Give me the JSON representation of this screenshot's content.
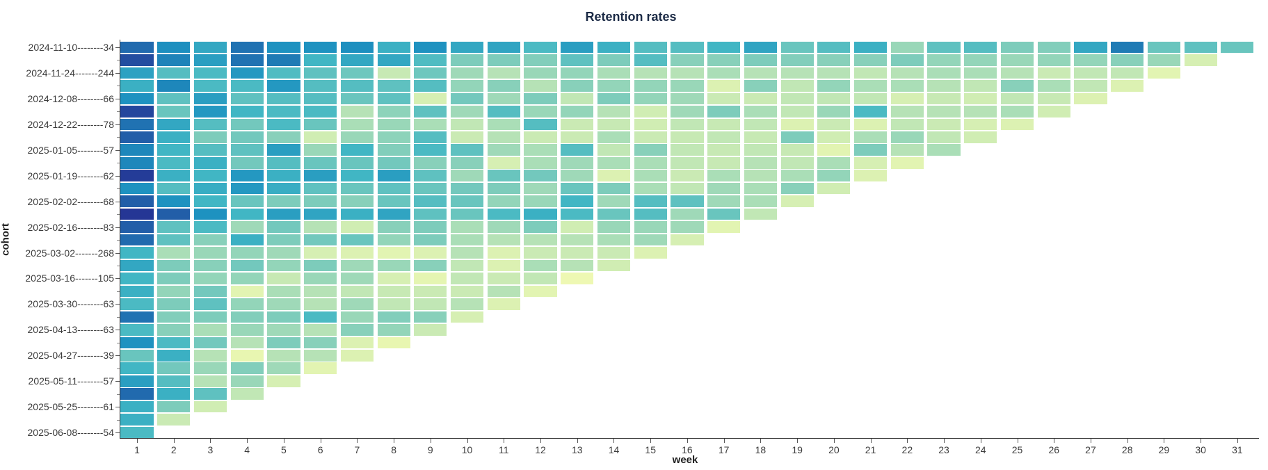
{
  "chart": {
    "title": "Retention rates",
    "x_axis": {
      "label": "week",
      "tick_labels": [
        "1",
        "2",
        "3",
        "4",
        "5",
        "6",
        "7",
        "8",
        "9",
        "10",
        "11",
        "12",
        "13",
        "14",
        "15",
        "16",
        "17",
        "18",
        "19",
        "20",
        "21",
        "22",
        "23",
        "24",
        "25",
        "26",
        "27",
        "28",
        "29",
        "30",
        "31"
      ]
    },
    "y_axis": {
      "label": "cohort",
      "tick_labels": [
        "2024-11-10--------34",
        "2024-11-24-------244",
        "2024-12-08--------66",
        "2024-12-22--------78",
        "2025-01-05--------57",
        "2025-01-19--------62",
        "2025-02-02--------68",
        "2025-02-16--------83",
        "2025-03-02-------268",
        "2025-03-16-------105",
        "2025-03-30--------63",
        "2025-04-13--------63",
        "2025-04-27--------39",
        "2025-05-11--------57",
        "2025-05-25--------61",
        "2025-06-08--------54"
      ]
    },
    "colors": {
      "background": "#ffffff",
      "title_color": "#1b2a45",
      "tick_text_color": "#3b3b3b",
      "colormap_name": "YlGnBu",
      "colormap_stops": [
        [
          0.0,
          "#ffffd9"
        ],
        [
          0.125,
          "#edf8b1"
        ],
        [
          0.25,
          "#c7e9b4"
        ],
        [
          0.375,
          "#7fcdbb"
        ],
        [
          0.5,
          "#41b6c4"
        ],
        [
          0.625,
          "#1d91c0"
        ],
        [
          0.75,
          "#225ea8"
        ],
        [
          0.875,
          "#253494"
        ],
        [
          1.0,
          "#081d58"
        ]
      ]
    }
  },
  "chart_data": {
    "type": "heatmap",
    "title": "Retention rates",
    "xlabel": "week",
    "ylabel": "cohort",
    "x": [
      1,
      2,
      3,
      4,
      5,
      6,
      7,
      8,
      9,
      10,
      11,
      12,
      13,
      14,
      15,
      16,
      17,
      18,
      19,
      20,
      21,
      22,
      23,
      24,
      25,
      26,
      27,
      28,
      29,
      30,
      31
    ],
    "value_units": "retention percent, estimated from YlGnBu color scale (high = dark blue, low = pale yellow)",
    "rows": [
      {
        "label": "2024-11-10--------34",
        "values": [
          72,
          63,
          55,
          70,
          62,
          62,
          63,
          52,
          62,
          55,
          56,
          48,
          58,
          52,
          46,
          46,
          50,
          56,
          42,
          46,
          52,
          33,
          44,
          46,
          38,
          37,
          55,
          68,
          42,
          44,
          42
        ]
      },
      {
        "label": "",
        "values": [
          80,
          66,
          58,
          70,
          68,
          50,
          55,
          55,
          47,
          38,
          38,
          37,
          44,
          38,
          46,
          36,
          36,
          38,
          37,
          36,
          36,
          38,
          34,
          34,
          33,
          34,
          34,
          36,
          33,
          20
        ]
      },
      {
        "label": "2024-11-24-------244",
        "values": [
          57,
          46,
          48,
          60,
          47,
          44,
          41,
          25,
          41,
          32,
          28,
          33,
          34,
          30,
          28,
          28,
          30,
          28,
          28,
          28,
          26,
          28,
          30,
          30,
          28,
          24,
          26,
          26,
          16
        ]
      },
      {
        "label": "",
        "values": [
          52,
          65,
          48,
          48,
          60,
          46,
          46,
          44,
          46,
          34,
          36,
          28,
          36,
          34,
          34,
          33,
          18,
          36,
          26,
          34,
          30,
          30,
          28,
          26,
          36,
          30,
          26,
          18
        ]
      },
      {
        "label": "2024-12-08--------66",
        "values": [
          62,
          44,
          58,
          44,
          46,
          46,
          42,
          44,
          20,
          40,
          32,
          38,
          26,
          38,
          34,
          32,
          24,
          24,
          26,
          26,
          26,
          20,
          25,
          22,
          26,
          25,
          18
        ]
      },
      {
        "label": "",
        "values": [
          82,
          42,
          60,
          50,
          48,
          48,
          28,
          35,
          44,
          32,
          46,
          33,
          34,
          28,
          22,
          32,
          38,
          30,
          26,
          33,
          48,
          28,
          28,
          28,
          30,
          22
        ]
      },
      {
        "label": "2024-12-22--------78",
        "values": [
          70,
          55,
          46,
          40,
          48,
          42,
          30,
          33,
          30,
          26,
          30,
          46,
          24,
          25,
          22,
          26,
          25,
          26,
          18,
          24,
          18,
          26,
          24,
          20,
          18
        ]
      },
      {
        "label": "",
        "values": [
          75,
          52,
          38,
          40,
          36,
          22,
          33,
          35,
          46,
          24,
          28,
          24,
          24,
          30,
          24,
          25,
          26,
          25,
          38,
          22,
          30,
          33,
          26,
          22
        ]
      },
      {
        "label": "2025-01-05--------57",
        "values": [
          65,
          50,
          46,
          44,
          58,
          33,
          50,
          37,
          48,
          44,
          32,
          30,
          46,
          26,
          36,
          26,
          25,
          26,
          25,
          16,
          38,
          28,
          30
        ]
      },
      {
        "label": "",
        "values": [
          65,
          48,
          52,
          40,
          46,
          42,
          42,
          40,
          36,
          36,
          20,
          30,
          32,
          30,
          30,
          26,
          25,
          28,
          26,
          30,
          20,
          16
        ]
      },
      {
        "label": "2025-01-19--------62",
        "values": [
          85,
          52,
          50,
          60,
          52,
          58,
          50,
          58,
          44,
          32,
          42,
          40,
          32,
          18,
          30,
          24,
          30,
          28,
          30,
          34,
          18
        ]
      },
      {
        "label": "",
        "values": [
          62,
          46,
          53,
          60,
          53,
          44,
          42,
          44,
          42,
          40,
          38,
          32,
          42,
          38,
          30,
          26,
          32,
          30,
          36,
          22
        ]
      },
      {
        "label": "2025-02-02--------68",
        "values": [
          75,
          62,
          50,
          42,
          38,
          38,
          36,
          42,
          46,
          42,
          34,
          33,
          50,
          32,
          46,
          44,
          32,
          30,
          20
        ]
      },
      {
        "label": "",
        "values": [
          87,
          75,
          62,
          50,
          58,
          56,
          52,
          56,
          44,
          42,
          48,
          52,
          48,
          42,
          46,
          32,
          42,
          26
        ]
      },
      {
        "label": "2025-02-16--------83",
        "values": [
          75,
          44,
          48,
          32,
          40,
          28,
          22,
          36,
          38,
          30,
          32,
          38,
          22,
          33,
          33,
          32,
          16
        ]
      },
      {
        "label": "",
        "values": [
          72,
          44,
          36,
          52,
          38,
          40,
          42,
          34,
          38,
          30,
          28,
          28,
          28,
          30,
          32,
          20
        ]
      },
      {
        "label": "2025-03-02-------268",
        "values": [
          50,
          30,
          33,
          34,
          32,
          20,
          18,
          16,
          18,
          28,
          18,
          24,
          24,
          24,
          18
        ]
      },
      {
        "label": "",
        "values": [
          55,
          38,
          36,
          40,
          34,
          38,
          32,
          33,
          36,
          26,
          18,
          30,
          28,
          22
        ]
      },
      {
        "label": "2025-03-16-------105",
        "values": [
          50,
          38,
          34,
          34,
          25,
          33,
          32,
          20,
          15,
          26,
          24,
          26,
          12
        ]
      },
      {
        "label": "",
        "values": [
          52,
          34,
          40,
          16,
          30,
          28,
          26,
          25,
          24,
          24,
          28,
          16
        ]
      },
      {
        "label": "2025-03-30--------63",
        "values": [
          48,
          38,
          44,
          34,
          32,
          28,
          32,
          26,
          26,
          28,
          18
        ]
      },
      {
        "label": "",
        "values": [
          70,
          37,
          38,
          37,
          38,
          48,
          33,
          37,
          36,
          20
        ]
      },
      {
        "label": "2025-04-13--------63",
        "values": [
          48,
          36,
          30,
          33,
          32,
          28,
          36,
          34,
          24
        ]
      },
      {
        "label": "",
        "values": [
          62,
          48,
          40,
          28,
          38,
          36,
          18,
          14
        ]
      },
      {
        "label": "2025-04-27--------39",
        "values": [
          42,
          52,
          28,
          14,
          28,
          28,
          18
        ]
      },
      {
        "label": "",
        "values": [
          50,
          40,
          33,
          37,
          32,
          16
        ]
      },
      {
        "label": "2025-05-11--------57",
        "values": [
          58,
          46,
          28,
          33,
          20
        ]
      },
      {
        "label": "",
        "values": [
          72,
          52,
          44,
          26
        ]
      },
      {
        "label": "2025-05-25--------61",
        "values": [
          52,
          38,
          22
        ]
      },
      {
        "label": "",
        "values": [
          52,
          24
        ]
      },
      {
        "label": "2025-06-08--------54",
        "values": [
          48
        ]
      }
    ]
  }
}
